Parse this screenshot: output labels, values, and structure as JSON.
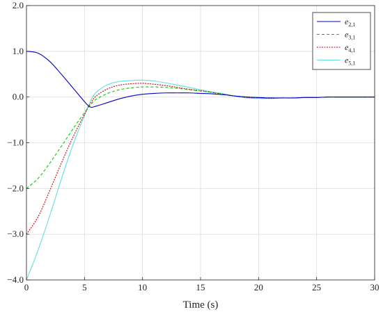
{
  "chart_data": {
    "type": "line",
    "xlabel": "Time (s)",
    "ylabel": "",
    "xlim": [
      0,
      30
    ],
    "ylim": [
      -4,
      2
    ],
    "x_ticks": [
      "0",
      "5",
      "10",
      "15",
      "20",
      "25",
      "30"
    ],
    "y_ticks": [
      "−4.0",
      "−3.0",
      "−2.0",
      "−1.0",
      "0.0",
      "1.0",
      "2.0"
    ],
    "grid": true,
    "legend_position": "top-right",
    "x": [
      0,
      1,
      2,
      3,
      4,
      5,
      5.5,
      6,
      7,
      8,
      9,
      10,
      11,
      12,
      13,
      14,
      15,
      16,
      17,
      18,
      19,
      20,
      21,
      22,
      23,
      24,
      25,
      26,
      27,
      28,
      29,
      30
    ],
    "series": [
      {
        "name": "e",
        "sub": "2,1",
        "color": "#0000cc",
        "dash": "",
        "values": [
          1.0,
          0.96,
          0.78,
          0.5,
          0.2,
          -0.1,
          -0.22,
          -0.2,
          -0.12,
          -0.04,
          0.02,
          0.06,
          0.08,
          0.09,
          0.09,
          0.09,
          0.08,
          0.07,
          0.05,
          0.02,
          0.0,
          -0.01,
          -0.02,
          -0.02,
          -0.02,
          -0.01,
          -0.01,
          0.0,
          0.0,
          0.0,
          0.0,
          0.0
        ]
      },
      {
        "name": "e",
        "sub": "3,1",
        "color": "#00cc00",
        "dash": "4,3",
        "values": [
          -2.0,
          -1.78,
          -1.45,
          -1.08,
          -0.7,
          -0.34,
          -0.18,
          -0.05,
          0.08,
          0.16,
          0.2,
          0.22,
          0.22,
          0.21,
          0.19,
          0.16,
          0.13,
          0.1,
          0.06,
          0.02,
          0.0,
          -0.02,
          -0.02,
          -0.02,
          -0.02,
          -0.01,
          -0.01,
          0.0,
          0.0,
          0.0,
          0.0,
          0.0
        ]
      },
      {
        "name": "e",
        "sub": "4,1",
        "color": "#cc0000",
        "dash": "2,1.5",
        "values": [
          -3.0,
          -2.62,
          -2.05,
          -1.45,
          -0.88,
          -0.38,
          -0.15,
          0.02,
          0.18,
          0.26,
          0.29,
          0.3,
          0.28,
          0.25,
          0.21,
          0.17,
          0.14,
          0.1,
          0.06,
          0.02,
          -0.01,
          -0.02,
          -0.03,
          -0.02,
          -0.02,
          -0.01,
          -0.01,
          0.0,
          0.0,
          0.0,
          0.0,
          0.0
        ]
      },
      {
        "name": "e",
        "sub": "5,1",
        "color": "#66dddd",
        "dash": "",
        "values": [
          -4.0,
          -3.35,
          -2.6,
          -1.8,
          -1.05,
          -0.4,
          -0.1,
          0.1,
          0.27,
          0.34,
          0.36,
          0.37,
          0.35,
          0.31,
          0.26,
          0.21,
          0.16,
          0.11,
          0.07,
          0.02,
          -0.02,
          -0.03,
          -0.03,
          -0.02,
          -0.02,
          -0.01,
          -0.01,
          0.0,
          0.0,
          0.0,
          0.0,
          0.0
        ]
      }
    ]
  }
}
